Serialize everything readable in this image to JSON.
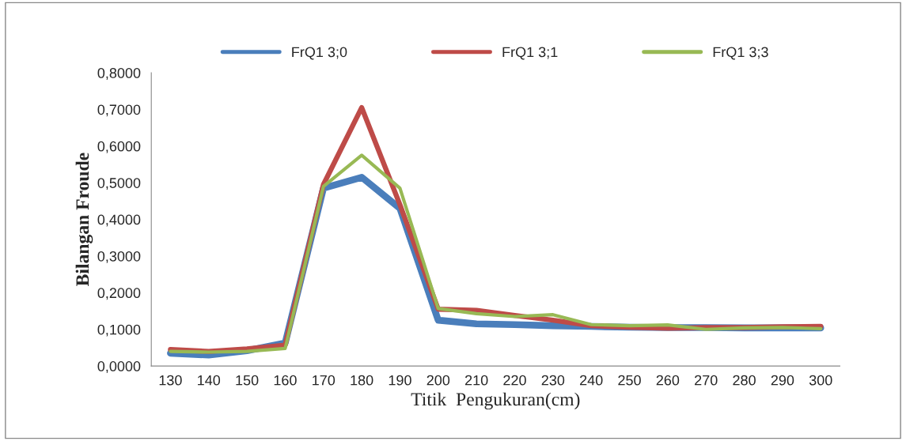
{
  "chart_data": {
    "type": "line",
    "xlabel": "Titik  Pengukuran(cm)",
    "ylabel": "Bilangan Froude",
    "categories": [
      "130",
      "140",
      "150",
      "160",
      "170",
      "180",
      "190",
      "200",
      "210",
      "220",
      "230",
      "240",
      "250",
      "260",
      "270",
      "280",
      "290",
      "300"
    ],
    "series": [
      {
        "name": "FrQ1 3;0",
        "color": "#4a7ebb",
        "values": [
          0.035,
          0.03,
          0.042,
          0.063,
          0.485,
          0.515,
          0.43,
          0.125,
          0.115,
          0.113,
          0.11,
          0.108,
          0.106,
          0.105,
          0.105,
          0.104,
          0.104,
          0.104
        ]
      },
      {
        "name": "FrQ1 3;1",
        "color": "#be4b48",
        "values": [
          0.045,
          0.04,
          0.047,
          0.057,
          0.495,
          0.705,
          0.44,
          0.155,
          0.152,
          0.138,
          0.125,
          0.11,
          0.106,
          0.103,
          0.105,
          0.105,
          0.107,
          0.108
        ]
      },
      {
        "name": "FrQ1 3;3",
        "color": "#98b954",
        "values": [
          0.04,
          0.038,
          0.04,
          0.048,
          0.49,
          0.575,
          0.485,
          0.157,
          0.143,
          0.135,
          0.14,
          0.113,
          0.11,
          0.112,
          0.1,
          0.104,
          0.105,
          0.102
        ]
      }
    ],
    "ylim": [
      0,
      0.8
    ],
    "yticks": [
      {
        "value": 0,
        "label": "0,0000"
      },
      {
        "value": 0.1,
        "label": "0,1000"
      },
      {
        "value": 0.2,
        "label": "0,2000"
      },
      {
        "value": 0.3,
        "label": "0,3000"
      },
      {
        "value": 0.4,
        "label": "0,4000"
      },
      {
        "value": 0.5,
        "label": "0,5000"
      },
      {
        "value": 0.6,
        "label": "0,6000"
      },
      {
        "value": 0.7,
        "label": "0,7000"
      },
      {
        "value": 0.8,
        "label": "0,8000"
      }
    ],
    "legend": "top",
    "grid": false,
    "marker": "none",
    "line_style": "solid"
  }
}
